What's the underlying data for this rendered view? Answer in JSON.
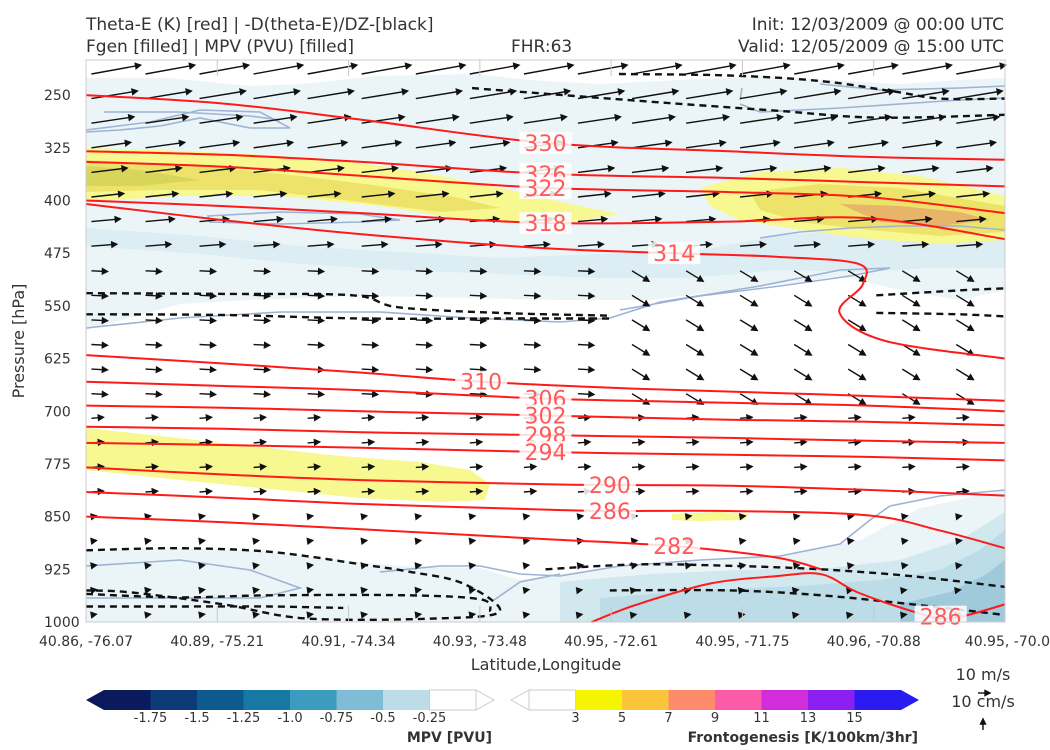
{
  "header": {
    "title_line1": "Theta-E (K) [red] | -D(theta-E)/DZ-[black]",
    "title_line2": "Fgen [filled] | MPV (PVU) [filled]",
    "fhr": "FHR:63",
    "init": "Init: 12/03/2009 @ 00:00 UTC",
    "valid": "Valid: 12/05/2009 @ 15:00 UTC"
  },
  "chart_data": {
    "type": "cross-section",
    "xlabel": "Latitude,Longitude",
    "ylabel": "Pressure [hPa]",
    "x_ticks": [
      "40.86, -76.07",
      "40.89, -75.21",
      "40.91, -74.34",
      "40.93, -73.48",
      "40.95, -72.61",
      "40.95, -71.75",
      "40.96, -70.88",
      "40.95, -70.0"
    ],
    "y_ticks": [
      250,
      325,
      400,
      475,
      550,
      625,
      700,
      775,
      850,
      925,
      1000
    ],
    "ylim": [
      1000,
      200
    ],
    "y_reversed": true,
    "grid": true,
    "theta_e_contours": [
      {
        "label": "330",
        "x": 0.5,
        "points": [
          [
            0,
            250
          ],
          [
            0.15,
            262
          ],
          [
            0.3,
            285
          ],
          [
            0.5,
            318
          ],
          [
            0.7,
            330
          ],
          [
            0.85,
            338
          ],
          [
            1.0,
            342
          ]
        ]
      },
      {
        "label": "326",
        "x": 0.5,
        "points": [
          [
            0,
            330
          ],
          [
            0.15,
            335
          ],
          [
            0.3,
            345
          ],
          [
            0.5,
            362
          ],
          [
            0.7,
            368
          ],
          [
            0.85,
            374
          ],
          [
            1.0,
            380
          ]
        ]
      },
      {
        "label": "322",
        "x": 0.5,
        "points": [
          [
            0,
            345
          ],
          [
            0.15,
            352
          ],
          [
            0.3,
            365
          ],
          [
            0.5,
            382
          ],
          [
            0.7,
            388
          ],
          [
            0.85,
            395
          ],
          [
            1.0,
            418
          ]
        ]
      },
      {
        "label": "318",
        "x": 0.5,
        "points": [
          [
            0,
            400
          ],
          [
            0.15,
            408
          ],
          [
            0.3,
            418
          ],
          [
            0.5,
            432
          ],
          [
            0.7,
            430
          ],
          [
            0.85,
            425
          ],
          [
            1.0,
            455
          ]
        ]
      },
      {
        "label": "314",
        "x": 0.64,
        "points": [
          [
            0,
            405
          ],
          [
            0.15,
            428
          ],
          [
            0.3,
            448
          ],
          [
            0.5,
            468
          ],
          [
            0.64,
            475
          ],
          [
            0.75,
            480
          ],
          [
            0.84,
            490
          ],
          [
            0.845,
            520
          ],
          [
            0.82,
            560
          ],
          [
            0.87,
            600
          ],
          [
            1.0,
            625
          ]
        ]
      },
      {
        "label": "310",
        "x": 0.43,
        "points": [
          [
            0,
            620
          ],
          [
            0.15,
            632
          ],
          [
            0.3,
            645
          ],
          [
            0.43,
            658
          ],
          [
            0.6,
            668
          ],
          [
            0.8,
            676
          ],
          [
            1.0,
            685
          ]
        ]
      },
      {
        "label": "306",
        "x": 0.5,
        "points": [
          [
            0,
            658
          ],
          [
            0.15,
            664
          ],
          [
            0.3,
            670
          ],
          [
            0.5,
            682
          ],
          [
            0.7,
            688
          ],
          [
            0.85,
            692
          ],
          [
            1.0,
            700
          ]
        ]
      },
      {
        "label": "302",
        "x": 0.5,
        "points": [
          [
            0,
            692
          ],
          [
            0.15,
            695
          ],
          [
            0.3,
            700
          ],
          [
            0.5,
            706
          ],
          [
            0.7,
            712
          ],
          [
            0.85,
            715
          ],
          [
            1.0,
            720
          ]
        ]
      },
      {
        "label": "298",
        "x": 0.5,
        "points": [
          [
            0,
            722
          ],
          [
            0.15,
            725
          ],
          [
            0.3,
            730
          ],
          [
            0.5,
            734
          ],
          [
            0.7,
            738
          ],
          [
            0.85,
            742
          ],
          [
            1.0,
            745
          ]
        ]
      },
      {
        "label": "294",
        "x": 0.5,
        "points": [
          [
            0,
            745
          ],
          [
            0.15,
            748
          ],
          [
            0.3,
            752
          ],
          [
            0.5,
            758
          ],
          [
            0.7,
            762
          ],
          [
            0.85,
            765
          ],
          [
            1.0,
            770
          ]
        ]
      },
      {
        "label": "290",
        "x": 0.57,
        "points": [
          [
            0,
            780
          ],
          [
            0.15,
            790
          ],
          [
            0.3,
            798
          ],
          [
            0.5,
            804
          ],
          [
            0.57,
            805
          ],
          [
            0.7,
            806
          ],
          [
            0.85,
            812
          ],
          [
            1.0,
            820
          ]
        ]
      },
      {
        "label": "286",
        "x": 0.57,
        "points": [
          [
            0,
            815
          ],
          [
            0.15,
            823
          ],
          [
            0.3,
            832
          ],
          [
            0.5,
            840
          ],
          [
            0.57,
            842
          ],
          [
            0.7,
            842
          ],
          [
            0.85,
            848
          ],
          [
            0.93,
            870
          ],
          [
            1.0,
            895
          ]
        ]
      },
      {
        "label": "282",
        "x": 0.64,
        "points": [
          [
            0,
            850
          ],
          [
            0.15,
            858
          ],
          [
            0.3,
            868
          ],
          [
            0.5,
            882
          ],
          [
            0.64,
            892
          ],
          [
            0.75,
            908
          ],
          [
            0.8,
            925
          ]
        ]
      },
      {
        "label": "286",
        "x": 0.93,
        "points": [
          [
            0.55,
            1000
          ],
          [
            0.6,
            975
          ],
          [
            0.68,
            945
          ],
          [
            0.75,
            935
          ],
          [
            0.8,
            932
          ],
          [
            0.84,
            958
          ],
          [
            0.9,
            985
          ],
          [
            0.94,
            995
          ],
          [
            1.0,
            975
          ]
        ]
      }
    ],
    "dthetae_dz_contours": [
      [
        [
          0.58,
          220
        ],
        [
          0.7,
          222
        ],
        [
          0.8,
          230
        ],
        [
          0.88,
          245
        ],
        [
          0.93,
          255
        ],
        [
          1.0,
          255
        ]
      ],
      [
        [
          0.42,
          240
        ],
        [
          0.6,
          258
        ],
        [
          0.75,
          272
        ],
        [
          0.86,
          282
        ],
        [
          1.0,
          278
        ]
      ],
      [
        [
          0,
          532
        ],
        [
          0.15,
          533
        ],
        [
          0.29,
          535
        ],
        [
          0.34,
          552
        ],
        [
          0.45,
          560
        ],
        [
          0.57,
          564
        ]
      ],
      [
        [
          0,
          562
        ],
        [
          0.15,
          563
        ],
        [
          0.3,
          568
        ],
        [
          0.45,
          568
        ],
        [
          0.57,
          568
        ]
      ],
      [
        [
          0.86,
          535
        ],
        [
          0.95,
          528
        ],
        [
          1.0,
          525
        ]
      ],
      [
        [
          0.86,
          560
        ],
        [
          0.95,
          562
        ],
        [
          1.0,
          565
        ]
      ],
      [
        [
          0,
          898
        ],
        [
          0.1,
          895
        ],
        [
          0.2,
          900
        ],
        [
          0.3,
          918
        ],
        [
          0.35,
          928
        ],
        [
          0.41,
          945
        ],
        [
          0.45,
          985
        ],
        [
          0.38,
          995
        ],
        [
          0.24,
          995
        ],
        [
          0.15,
          975
        ],
        [
          0.05,
          958
        ],
        [
          0,
          955
        ]
      ],
      [
        [
          0,
          960
        ],
        [
          0.1,
          965
        ],
        [
          0.2,
          962
        ],
        [
          0.35,
          962
        ],
        [
          0.43,
          968
        ],
        [
          0.44,
          985
        ]
      ],
      [
        [
          0,
          978
        ],
        [
          0.1,
          978
        ],
        [
          0.2,
          978
        ],
        [
          0.28,
          980
        ]
      ],
      [
        [
          0.5,
          925
        ],
        [
          0.6,
          918
        ],
        [
          0.7,
          920
        ],
        [
          0.8,
          925
        ],
        [
          0.9,
          935
        ],
        [
          1.0,
          950
        ]
      ],
      [
        [
          0.57,
          955
        ],
        [
          0.7,
          955
        ],
        [
          0.8,
          962
        ],
        [
          0.9,
          975
        ],
        [
          1.0,
          990
        ]
      ]
    ],
    "mpv_fill_levels": [
      -1.75,
      -1.5,
      -1.25,
      -1.0,
      -0.75,
      -0.5,
      -0.25
    ],
    "mpv_colors": [
      "#0b1a5c",
      "#0c3b78",
      "#0d5a8f",
      "#1779a3",
      "#3d9bbf",
      "#7fbdd6",
      "#bcdce8"
    ],
    "fgen_levels": [
      3,
      5,
      7,
      9,
      11,
      13,
      15
    ],
    "fgen_colors": [
      "#f5f500",
      "#fcc43a",
      "#fd8a6a",
      "#fb5ba8",
      "#d22ddb",
      "#8b1ff1",
      "#2a1cf0"
    ],
    "colorbar_mpv_title": "MPV [PVU]",
    "colorbar_fgen_title": "Frontogenesis [K/100km/3hr]",
    "mpv_tick_labels": [
      "-1.75",
      "-1.5",
      "-1.25",
      "-1.0",
      "-0.75",
      "-0.5",
      "-0.25"
    ],
    "fgen_tick_labels": [
      "3",
      "5",
      "7",
      "9",
      "11",
      "13",
      "15"
    ],
    "reference_vectors": [
      "10 m/s",
      "10 cm/s"
    ]
  },
  "colors": {
    "theta_e": "#ff1a1a",
    "dthetae": "#111111",
    "mpv_light": "#ebf5f8",
    "mpv_mid": "#d2e8ef",
    "fgen_low": "#f7f88f",
    "fgen_mid": "#eee36a",
    "fgen_orange": "#e7b46a",
    "outline": "#9eb2d4"
  }
}
